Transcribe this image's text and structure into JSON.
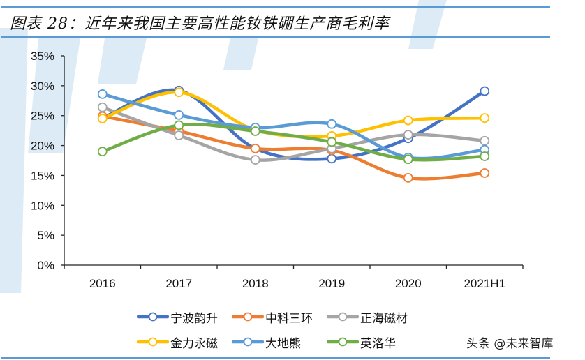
{
  "header": {
    "title": "图表 28：近年来我国主要高性能钕铁硼生产商毛利率"
  },
  "footer": {
    "source": "头条 @未来智库"
  },
  "chart_data": {
    "type": "line",
    "title": "图表 28：近年来我国主要高性能钕铁硼生产商毛利率",
    "xlabel": "",
    "ylabel": "",
    "categories": [
      "2016",
      "2017",
      "2018",
      "2019",
      "2020",
      "2021H1"
    ],
    "ylim": [
      0,
      35
    ],
    "yticks": [
      0,
      5,
      10,
      15,
      20,
      25,
      30,
      35
    ],
    "ytick_labels": [
      "0%",
      "5%",
      "10%",
      "15%",
      "20%",
      "25%",
      "30%",
      "35%"
    ],
    "grid": false,
    "smooth": true,
    "legend_position": "bottom",
    "series": [
      {
        "name": "宁波韵升",
        "color": "#4472C4",
        "values": [
          24.6,
          29.2,
          19.5,
          17.8,
          21.2,
          29.1
        ]
      },
      {
        "name": "中科三环",
        "color": "#ED7D31",
        "values": [
          24.9,
          22.4,
          19.5,
          19.2,
          14.6,
          15.4
        ]
      },
      {
        "name": "正海磁材",
        "color": "#A5A5A5",
        "values": [
          26.4,
          21.7,
          17.6,
          19.5,
          21.8,
          20.8
        ]
      },
      {
        "name": "金力永磁",
        "color": "#FFC000",
        "values": [
          24.5,
          28.9,
          22.6,
          21.6,
          24.2,
          24.6
        ]
      },
      {
        "name": "大地熊",
        "color": "#5B9BD5",
        "values": [
          28.6,
          25.1,
          23.0,
          23.6,
          18.0,
          19.3
        ]
      },
      {
        "name": "英洛华",
        "color": "#70AD47",
        "values": [
          19.0,
          23.4,
          22.4,
          20.6,
          17.7,
          18.2
        ]
      }
    ]
  }
}
